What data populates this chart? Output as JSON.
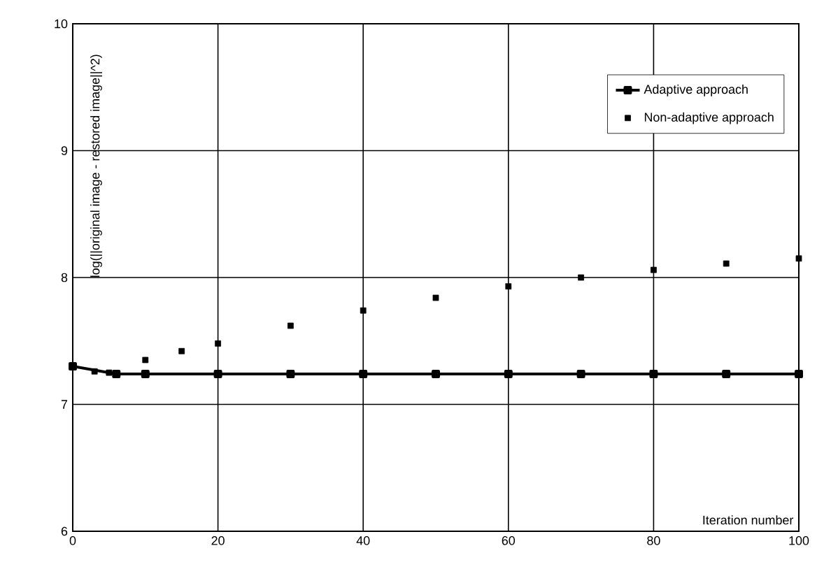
{
  "chart_data": {
    "type": "line",
    "xlabel": "Iteration number",
    "ylabel": "log(||original image - restored image||^2)",
    "xlim": [
      0,
      100
    ],
    "ylim": [
      6,
      10
    ],
    "xticks": [
      0,
      20,
      40,
      60,
      80,
      100
    ],
    "yticks": [
      6,
      7,
      8,
      9,
      10
    ],
    "grid": true,
    "legend": "top right",
    "marker": "square",
    "series": [
      {
        "name": "Adaptive approach",
        "color": "#000000",
        "x": [
          0,
          6,
          10,
          20,
          30,
          40,
          50,
          60,
          70,
          80,
          90,
          100
        ],
        "values": [
          7.3,
          7.24,
          7.24,
          7.24,
          7.24,
          7.24,
          7.24,
          7.24,
          7.24,
          7.24,
          7.24,
          7.24
        ]
      },
      {
        "name": "Non-adaptive approach",
        "type": "scatter",
        "color": "#000000",
        "x": [
          3,
          5,
          10,
          15,
          20,
          30,
          40,
          50,
          60,
          70,
          80,
          90,
          100
        ],
        "values": [
          7.26,
          7.25,
          7.35,
          7.42,
          7.48,
          7.62,
          7.74,
          7.84,
          7.93,
          8.0,
          8.06,
          8.11,
          8.15
        ]
      }
    ]
  }
}
